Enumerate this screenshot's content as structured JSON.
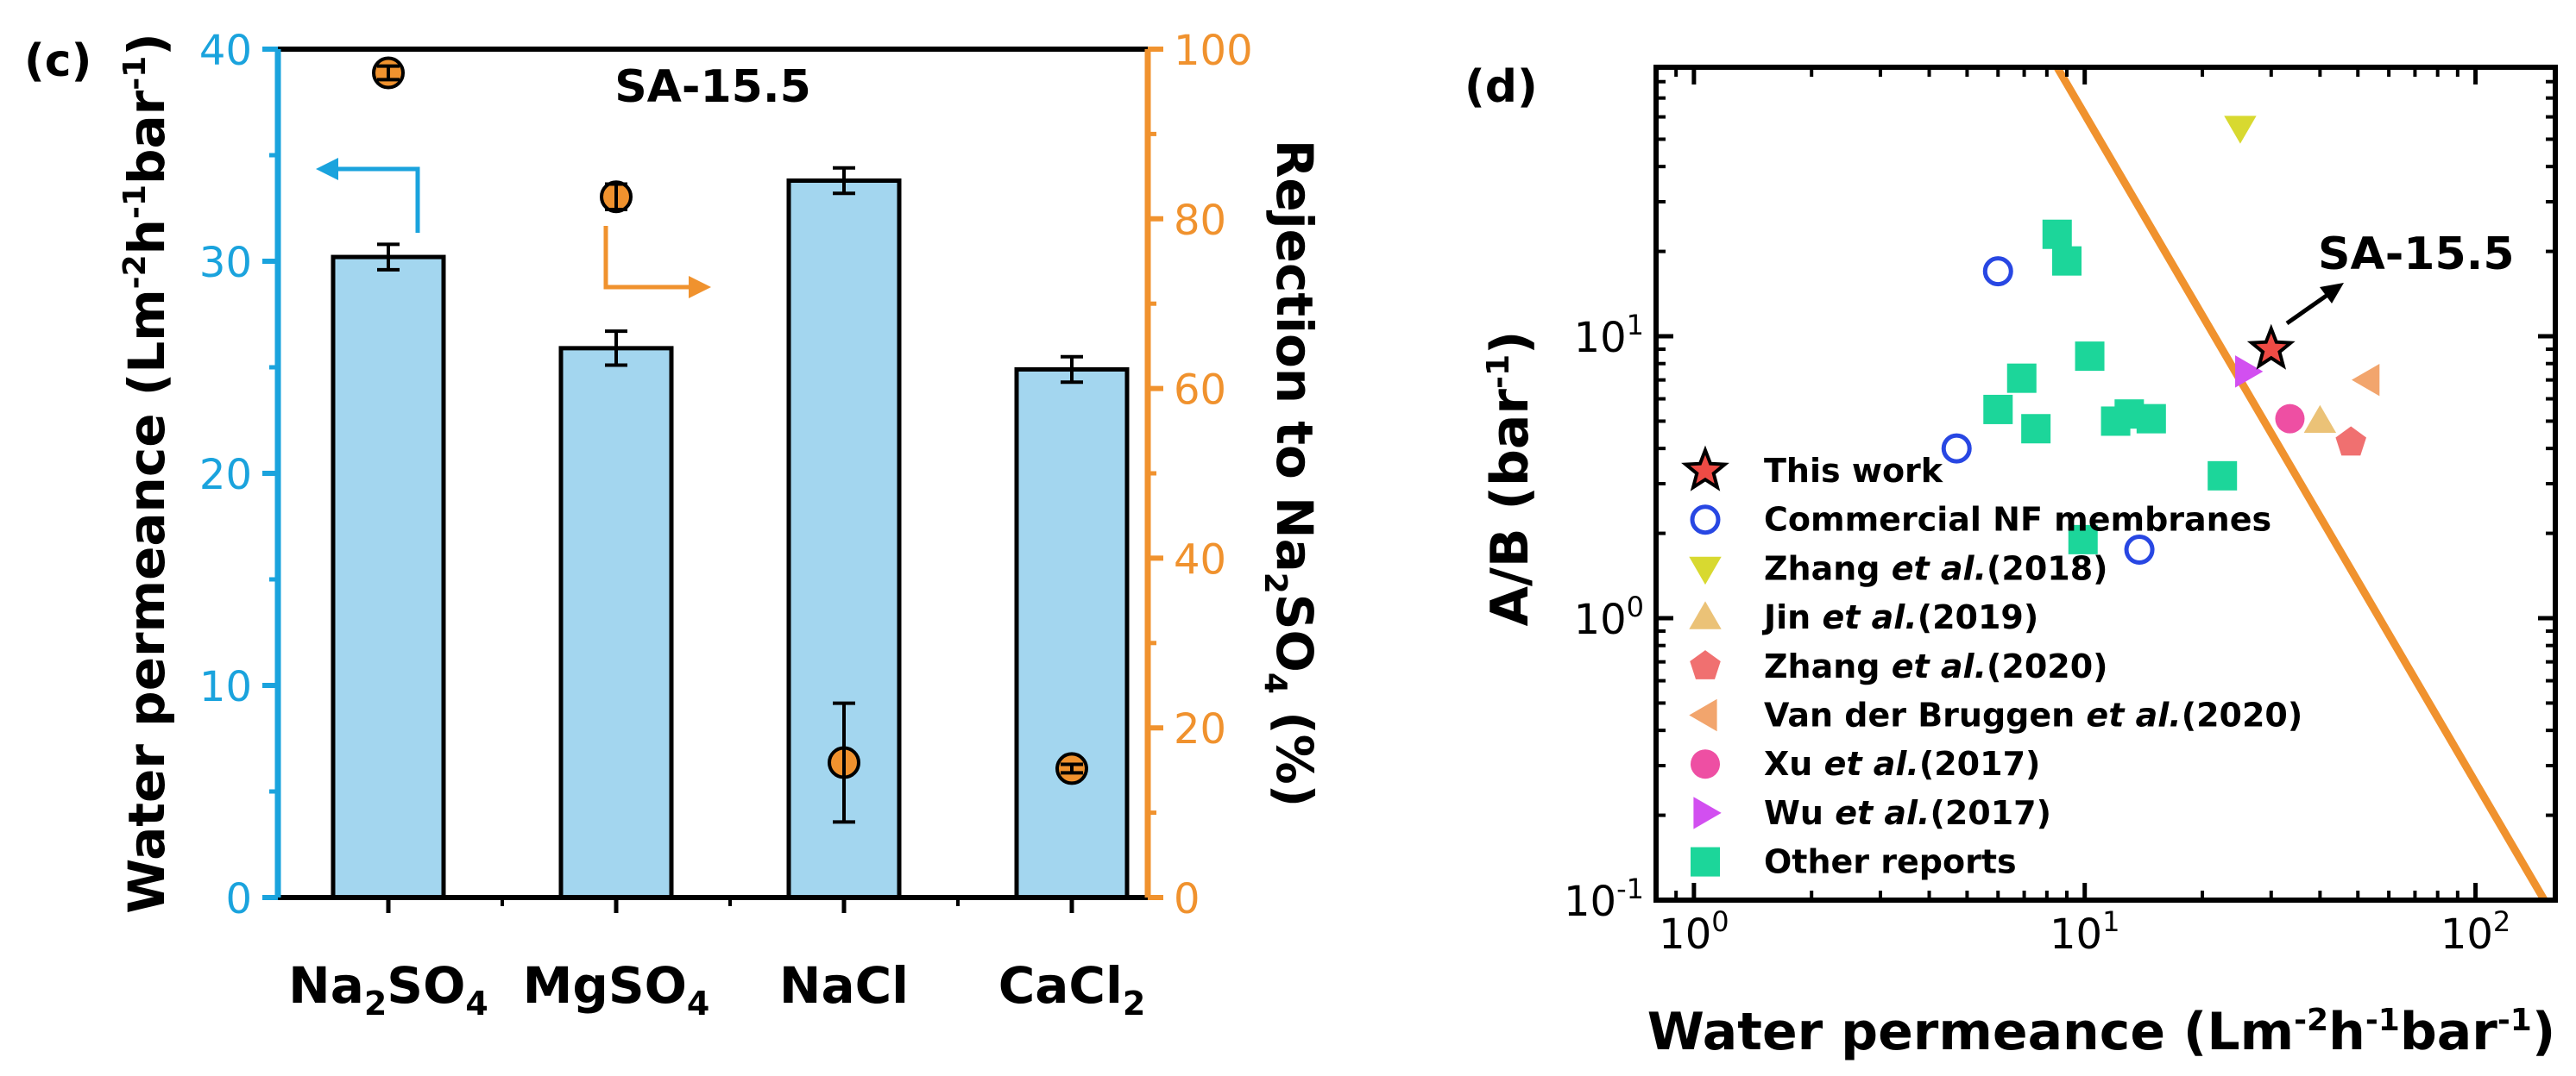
{
  "panel_c": {
    "label": "(c)",
    "sample": "SA-15.5",
    "left_axis": {
      "label_main": "Water permeance (Lm",
      "sup1": "-2",
      "mid1": "h",
      "sup2": "-1",
      "mid2": "bar",
      "sup3": "-1",
      "close": ")",
      "color": "#1AA3DD"
    },
    "right_axis": {
      "label_main": "Rejection to Na",
      "sub1": "2",
      "mid": "SO",
      "sub2": "4",
      "close": " (%)",
      "color": "#F0922E"
    },
    "category_labels": [
      {
        "a": "Na",
        "s1": "2",
        "b": "SO",
        "s2": "4"
      },
      {
        "a": "MgSO",
        "s1": "4",
        "b": "",
        "s2": ""
      },
      {
        "a": "NaCl",
        "s1": "",
        "b": "",
        "s2": ""
      },
      {
        "a": "CaCl",
        "s1": "2",
        "b": "",
        "s2": ""
      }
    ]
  },
  "panel_d": {
    "label": "(d)",
    "x_axis": {
      "label_main": "Water permeance (Lm",
      "sup1": "-2",
      "mid1": "h",
      "sup2": "-1",
      "mid2": "bar",
      "sup3": "-1",
      "close": ")"
    },
    "y_axis": {
      "label_main": "A/B (bar",
      "sup": "-1",
      "close": ")"
    },
    "annotation": "SA-15.5",
    "legend": [
      {
        "pre": "This work",
        "it": "",
        "post": ""
      },
      {
        "pre": "Commercial NF membranes",
        "it": "",
        "post": ""
      },
      {
        "pre": "Zhang ",
        "it": "et al.",
        "post": "(2018)"
      },
      {
        "pre": "Jin ",
        "it": "et al.",
        "post": "(2019)"
      },
      {
        "pre": "Zhang ",
        "it": "et al.",
        "post": "(2020)"
      },
      {
        "pre": "Van der Bruggen ",
        "it": "et al.",
        "post": "(2020)"
      },
      {
        "pre": "Xu ",
        "it": "et al.",
        "post": "(2017)"
      },
      {
        "pre": "Wu ",
        "it": "et al.",
        "post": "(2017)"
      },
      {
        "pre": "Other reports",
        "it": "",
        "post": ""
      }
    ]
  },
  "chart_data": [
    {
      "type": "bar",
      "title": "SA-15.5",
      "categories": [
        "Na2SO4",
        "MgSO4",
        "NaCl",
        "CaCl2"
      ],
      "ylabel": "Water permeance (Lm-2h-1bar-1)",
      "ylim": [
        0,
        40
      ],
      "yticks": [
        0,
        10,
        20,
        30,
        40
      ],
      "y2label": "Rejection to Na2SO4 (%)",
      "y2lim": [
        0,
        100
      ],
      "y2ticks": [
        0,
        20,
        40,
        60,
        80,
        100
      ],
      "series": [
        {
          "name": "Water permeance",
          "axis": "left",
          "kind": "bar",
          "color": "#A3D6EF",
          "values": [
            30.2,
            25.9,
            33.8,
            24.9
          ],
          "errors": [
            0.6,
            0.8,
            0.6,
            0.6
          ]
        },
        {
          "name": "Rejection",
          "axis": "right",
          "kind": "scatter",
          "color": "#F0922E",
          "values": [
            97.2,
            82.6,
            15.9,
            15.2
          ],
          "errors": [
            0.8,
            1.5,
            7.0,
            0.5
          ]
        }
      ]
    },
    {
      "type": "scatter",
      "xscale": "log",
      "yscale": "log",
      "xlabel": "Water permeance (Lm-2h-1bar-1)",
      "ylabel": "A/B (bar-1)",
      "xlim": [
        0.8,
        160
      ],
      "ylim": [
        0.1,
        90
      ],
      "xticks": [
        "10^0",
        "10^1",
        "10^2"
      ],
      "yticks": [
        "10^-1",
        "10^0",
        "10^1"
      ],
      "trade_off_line": {
        "color": "#F0922E",
        "points": [
          [
            8.5,
            90
          ],
          [
            150,
            0.1
          ]
        ]
      },
      "annotation": {
        "text": "SA-15.5",
        "x": 30,
        "y": 9
      },
      "series": [
        {
          "name": "This work",
          "marker": "star",
          "color": "#EE4B45",
          "points": [
            [
              30,
              9
            ]
          ]
        },
        {
          "name": "Commercial NF membranes",
          "marker": "circle-open",
          "color": "#2847E3",
          "points": [
            [
              6,
              17
            ],
            [
              4.7,
              4
            ],
            [
              13.8,
              1.75
            ]
          ]
        },
        {
          "name": "Zhang et al.(2018)",
          "marker": "triangle-down",
          "color": "#D8D930",
          "points": [
            [
              25,
              55
            ]
          ]
        },
        {
          "name": "Jin et al.(2019)",
          "marker": "triangle-up",
          "color": "#EBC277",
          "points": [
            [
              40,
              5
            ]
          ]
        },
        {
          "name": "Zhang et al.(2020)",
          "marker": "pentagon",
          "color": "#F07070",
          "points": [
            [
              48,
              4.2
            ]
          ]
        },
        {
          "name": "Van der Bruggen et al.(2020)",
          "marker": "triangle-left",
          "color": "#F2A56D",
          "points": [
            [
              53,
              7
            ]
          ]
        },
        {
          "name": "Xu et al.(2017)",
          "marker": "circle",
          "color": "#EE4FA3",
          "points": [
            [
              33.5,
              5.1
            ]
          ]
        },
        {
          "name": "Wu et al.(2017)",
          "marker": "triangle-right",
          "color": "#D24FF0",
          "points": [
            [
              26,
              7.5
            ]
          ]
        },
        {
          "name": "Other reports",
          "marker": "square",
          "color": "#1CD69A",
          "points": [
            [
              8.5,
              23
            ],
            [
              9,
              18.5
            ],
            [
              10.3,
              8.5
            ],
            [
              6.9,
              7.1
            ],
            [
              6,
              5.5
            ],
            [
              7.5,
              4.7
            ],
            [
              12,
              5
            ],
            [
              13,
              5.3
            ],
            [
              14.8,
              5.1
            ],
            [
              22.5,
              3.2
            ],
            [
              9.9,
              1.9
            ]
          ]
        }
      ]
    }
  ]
}
